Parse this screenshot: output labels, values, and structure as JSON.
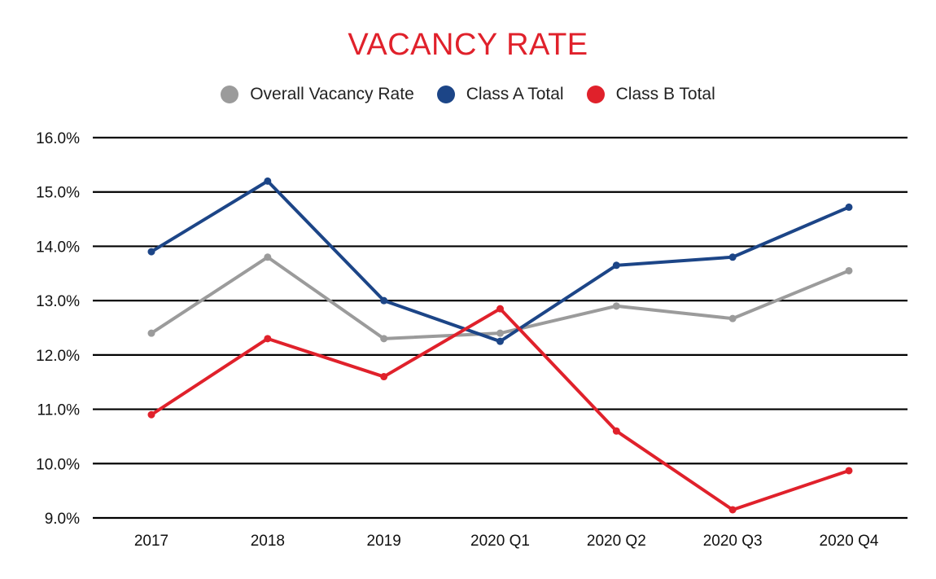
{
  "chart_data": {
    "type": "line",
    "title": "VACANCY RATE",
    "xlabel": "",
    "ylabel": "",
    "categories": [
      "2017",
      "2018",
      "2019",
      "2020 Q1",
      "2020 Q2",
      "2020 Q3",
      "2020 Q4"
    ],
    "yticks": [
      "9.0%",
      "10.0%",
      "11.0%",
      "12.0%",
      "13.0%",
      "14.0%",
      "15.0%",
      "16.0%"
    ],
    "ylim": [
      9.0,
      16.0
    ],
    "grid": true,
    "legend_position": "top-center",
    "series": [
      {
        "name": "Overall Vacancy Rate",
        "color": "#9b9b9b",
        "values": [
          12.4,
          13.8,
          12.3,
          12.4,
          12.9,
          12.67,
          13.55
        ]
      },
      {
        "name": "Class A Total",
        "color": "#1c4587",
        "values": [
          13.9,
          15.2,
          13.0,
          12.25,
          13.65,
          13.8,
          14.72
        ]
      },
      {
        "name": "Class B Total",
        "color": "#e0212b",
        "values": [
          10.9,
          12.3,
          11.6,
          12.85,
          10.6,
          9.15,
          9.87
        ]
      }
    ]
  }
}
